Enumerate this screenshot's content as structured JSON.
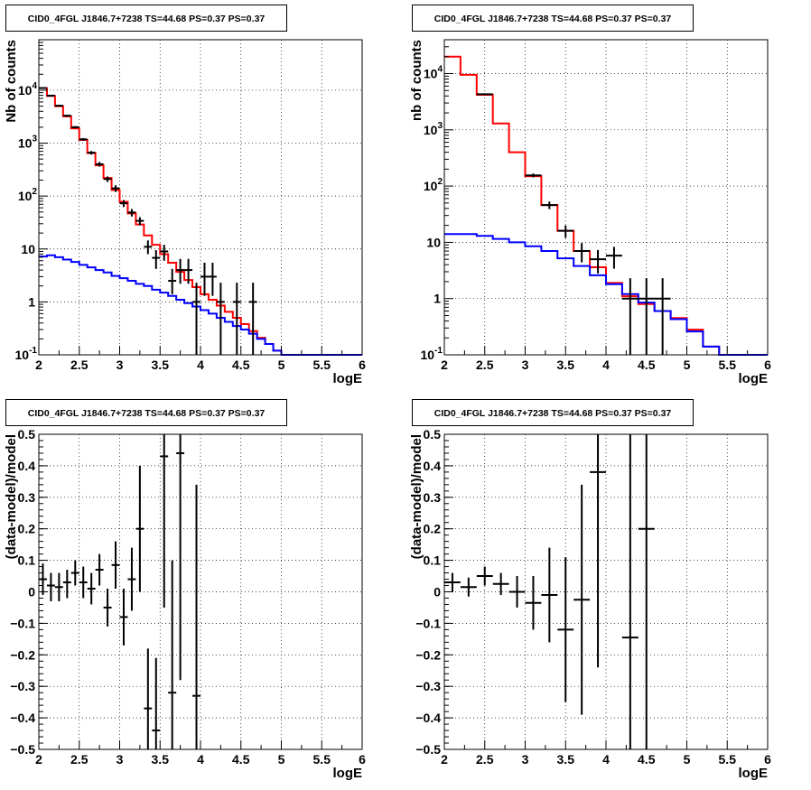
{
  "chart_data": [
    {
      "type": "line",
      "title": "CID0_4FGL J1846.7+7238 TS=44.68 PS=0.37 PS=0.37",
      "xlabel": "logE",
      "ylabel": "Nb of counts",
      "xlim": [
        2,
        6
      ],
      "ylim": [
        0.1,
        90000
      ],
      "yscale": "log",
      "grid": true,
      "xticks": [
        "2",
        "2.5",
        "3",
        "3.5",
        "4",
        "4.5",
        "5",
        "5.5",
        "6"
      ],
      "yticks": [
        {
          "v": 0.1,
          "base": "10",
          "exp": "-1"
        },
        {
          "v": 1,
          "label": "1"
        },
        {
          "v": 10,
          "label": "10"
        },
        {
          "v": 100,
          "base": "10",
          "exp": "2"
        },
        {
          "v": 1000,
          "base": "10",
          "exp": "3"
        },
        {
          "v": 10000,
          "base": "10",
          "exp": "4"
        }
      ],
      "bin_edges": [
        2.0,
        2.1,
        2.2,
        2.3,
        2.4,
        2.5,
        2.6,
        2.7,
        2.8,
        2.9,
        3.0,
        3.1,
        3.2,
        3.3,
        3.4,
        3.5,
        3.6,
        3.7,
        3.8,
        3.9,
        4.0,
        4.1,
        4.2,
        4.3,
        4.4,
        4.5,
        4.6,
        4.7,
        4.8,
        4.9,
        5.0,
        5.1,
        5.2,
        5.3,
        5.4,
        5.5,
        5.6,
        5.7,
        5.8,
        5.9,
        6.0
      ],
      "series": [
        {
          "color": "#ff0000",
          "values": [
            11000,
            7800,
            5000,
            3200,
            1900,
            1150,
            650,
            380,
            220,
            130,
            78,
            47,
            29,
            18,
            12,
            8,
            5.5,
            3.7,
            2.6,
            1.9,
            1.4,
            1.1,
            0.85,
            0.65,
            0.5,
            0.38,
            0.28,
            0.21,
            0.16,
            0.12,
            0.09,
            0.09,
            0.09,
            0.09,
            0.09,
            0.09,
            0.09,
            0.09,
            0.09,
            0.09
          ]
        },
        {
          "color": "#0000ff",
          "values": [
            7.2,
            7.6,
            7.0,
            6.3,
            5.7,
            5.0,
            4.5,
            4.0,
            3.6,
            3.1,
            2.8,
            2.5,
            2.2,
            2.0,
            1.7,
            1.5,
            1.3,
            1.1,
            0.95,
            0.82,
            0.7,
            0.6,
            0.5,
            0.42,
            0.35,
            0.3,
            0.25,
            0.2,
            0.16,
            0.12,
            0.09,
            0.09,
            0.09,
            0.09,
            0.09,
            0.09,
            0.09,
            0.09,
            0.09,
            0.09
          ]
        }
      ],
      "points": [
        {
          "x": 2.05,
          "y": 11000,
          "ylo": 10700,
          "yhi": 11300,
          "xerr": 0.05
        },
        {
          "x": 2.15,
          "y": 7900,
          "ylo": 7650,
          "yhi": 8150,
          "xerr": 0.05
        },
        {
          "x": 2.25,
          "y": 5100,
          "ylo": 4900,
          "yhi": 5300,
          "xerr": 0.05
        },
        {
          "x": 2.35,
          "y": 3300,
          "ylo": 3150,
          "yhi": 3450,
          "xerr": 0.05
        },
        {
          "x": 2.45,
          "y": 2000,
          "ylo": 1900,
          "yhi": 2100,
          "xerr": 0.05
        },
        {
          "x": 2.55,
          "y": 1180,
          "ylo": 1110,
          "yhi": 1250,
          "xerr": 0.05
        },
        {
          "x": 2.65,
          "y": 660,
          "ylo": 610,
          "yhi": 710,
          "xerr": 0.05
        },
        {
          "x": 2.75,
          "y": 400,
          "ylo": 360,
          "yhi": 440,
          "xerr": 0.05
        },
        {
          "x": 2.85,
          "y": 210,
          "ylo": 185,
          "yhi": 235,
          "xerr": 0.05
        },
        {
          "x": 2.95,
          "y": 140,
          "ylo": 120,
          "yhi": 160,
          "xerr": 0.05
        },
        {
          "x": 3.05,
          "y": 73,
          "ylo": 62,
          "yhi": 84,
          "xerr": 0.05
        },
        {
          "x": 3.15,
          "y": 49,
          "ylo": 41,
          "yhi": 57,
          "xerr": 0.05
        },
        {
          "x": 3.25,
          "y": 34,
          "ylo": 28,
          "yhi": 40,
          "xerr": 0.05
        },
        {
          "x": 3.35,
          "y": 11,
          "ylo": 8,
          "yhi": 14.5,
          "xerr": 0.05
        },
        {
          "x": 3.45,
          "y": 6.8,
          "ylo": 4.2,
          "yhi": 9.5,
          "xerr": 0.05
        },
        {
          "x": 3.55,
          "y": 9,
          "ylo": 6,
          "yhi": 12,
          "xerr": 0.05
        },
        {
          "x": 3.65,
          "y": 2.5,
          "ylo": 1.4,
          "yhi": 4.2,
          "xerr": 0.05
        },
        {
          "x": 3.75,
          "y": 4,
          "ylo": 2.2,
          "yhi": 6.5,
          "xerr": 0.05
        },
        {
          "x": 3.85,
          "y": 4,
          "ylo": 2.2,
          "yhi": 6.5,
          "xerr": 0.05
        },
        {
          "x": 3.95,
          "y": 1,
          "ylo": 0.1,
          "yhi": 2.3,
          "xerr": 0.05
        },
        {
          "x": 4.05,
          "y": 3,
          "ylo": 1.3,
          "yhi": 5.5,
          "xerr": 0.05
        },
        {
          "x": 4.15,
          "y": 3,
          "ylo": 1.3,
          "yhi": 5.5,
          "xerr": 0.05
        },
        {
          "x": 4.25,
          "y": 1,
          "ylo": 0.1,
          "yhi": 2.3,
          "xerr": 0.05
        },
        {
          "x": 4.45,
          "y": 1,
          "ylo": 0.1,
          "yhi": 2.3,
          "xerr": 0.05
        },
        {
          "x": 4.65,
          "y": 1,
          "ylo": 0.1,
          "yhi": 2.3,
          "xerr": 0.05
        }
      ]
    },
    {
      "type": "line",
      "title": "CID0_4FGL J1846.7+7238 TS=44.68 PS=0.37 PS=0.37",
      "xlabel": "logE",
      "ylabel": "nb of counts",
      "xlim": [
        2,
        6
      ],
      "ylim": [
        0.1,
        40000
      ],
      "yscale": "log",
      "grid": true,
      "xticks": [
        "2",
        "2.5",
        "3",
        "3.5",
        "4",
        "4.5",
        "5",
        "5.5",
        "6"
      ],
      "yticks": [
        {
          "v": 0.1,
          "base": "10",
          "exp": "-1"
        },
        {
          "v": 1,
          "label": "1"
        },
        {
          "v": 10,
          "label": "10"
        },
        {
          "v": 100,
          "base": "10",
          "exp": "2"
        },
        {
          "v": 1000,
          "base": "10",
          "exp": "3"
        },
        {
          "v": 10000,
          "base": "10",
          "exp": "4"
        }
      ],
      "bin_edges": [
        2.0,
        2.2,
        2.4,
        2.6,
        2.8,
        3.0,
        3.2,
        3.4,
        3.6,
        3.8,
        4.0,
        4.2,
        4.4,
        4.6,
        4.8,
        5.0,
        5.2,
        5.4,
        5.6,
        5.8,
        6.0
      ],
      "series": [
        {
          "color": "#ff0000",
          "values": [
            20000,
            9500,
            4200,
            1300,
            400,
            150,
            46,
            16,
            7,
            3.6,
            1.9,
            1.1,
            0.8,
            0.6,
            0.45,
            0.28,
            0.14,
            0.09,
            0.09,
            0.09
          ]
        },
        {
          "color": "#0000ff",
          "values": [
            14,
            14,
            13,
            11.5,
            10,
            8.5,
            7,
            5.2,
            3.8,
            2.6,
            1.8,
            1.2,
            0.85,
            0.6,
            0.43,
            0.26,
            0.14,
            0.09,
            0.09,
            0.09
          ]
        }
      ],
      "points": [
        {
          "x": 2.5,
          "y": 4300,
          "ylo": 4150,
          "yhi": 4450,
          "xerr": 0.1
        },
        {
          "x": 3.1,
          "y": 155,
          "ylo": 143,
          "yhi": 167,
          "xerr": 0.1
        },
        {
          "x": 3.3,
          "y": 46,
          "ylo": 39,
          "yhi": 53,
          "xerr": 0.1
        },
        {
          "x": 3.5,
          "y": 16,
          "ylo": 12,
          "yhi": 20,
          "xerr": 0.1
        },
        {
          "x": 3.7,
          "y": 7,
          "ylo": 4.4,
          "yhi": 9.7,
          "xerr": 0.1
        },
        {
          "x": 3.9,
          "y": 5,
          "ylo": 2.8,
          "yhi": 7.3,
          "xerr": 0.1
        },
        {
          "x": 4.1,
          "y": 5.8,
          "ylo": 3.4,
          "yhi": 8.3,
          "xerr": 0.1
        },
        {
          "x": 4.3,
          "y": 1,
          "ylo": 0.1,
          "yhi": 2.3,
          "xerr": 0.1
        },
        {
          "x": 4.5,
          "y": 1,
          "ylo": 0.1,
          "yhi": 2.3,
          "xerr": 0.1
        },
        {
          "x": 4.7,
          "y": 1,
          "ylo": 0.1,
          "yhi": 2.3,
          "xerr": 0.1
        }
      ]
    },
    {
      "type": "scatter",
      "title": "CID0_4FGL J1846.7+7238 TS=44.68 PS=0.37 PS=0.37",
      "xlabel": "logE",
      "ylabel": "(data-model)/model",
      "xlim": [
        2,
        6
      ],
      "ylim": [
        -0.5,
        0.5
      ],
      "yscale": "linear",
      "grid": true,
      "xticks": [
        "2",
        "2.5",
        "3",
        "3.5",
        "4",
        "4.5",
        "5",
        "5.5",
        "6"
      ],
      "yticks": [
        {
          "v": -0.5,
          "label": "−0.5"
        },
        {
          "v": -0.4,
          "label": "−0.4"
        },
        {
          "v": -0.3,
          "label": "−0.3"
        },
        {
          "v": -0.2,
          "label": "−0.2"
        },
        {
          "v": -0.1,
          "label": "−0.1"
        },
        {
          "v": 0,
          "label": "0"
        },
        {
          "v": 0.1,
          "label": "0.1"
        },
        {
          "v": 0.2,
          "label": "0.2"
        },
        {
          "v": 0.3,
          "label": "0.3"
        },
        {
          "v": 0.4,
          "label": "0.4"
        },
        {
          "v": 0.5,
          "label": "0.5"
        }
      ],
      "points": [
        {
          "x": 2.05,
          "y": 0.04,
          "ylo": -0.01,
          "yhi": 0.09,
          "xerr": 0.05
        },
        {
          "x": 2.15,
          "y": 0.02,
          "ylo": -0.03,
          "yhi": 0.06,
          "xerr": 0.05
        },
        {
          "x": 2.25,
          "y": 0.015,
          "ylo": -0.03,
          "yhi": 0.06,
          "xerr": 0.05
        },
        {
          "x": 2.35,
          "y": 0.03,
          "ylo": -0.02,
          "yhi": 0.07,
          "xerr": 0.05
        },
        {
          "x": 2.45,
          "y": 0.06,
          "ylo": 0.02,
          "yhi": 0.1,
          "xerr": 0.05
        },
        {
          "x": 2.55,
          "y": 0.03,
          "ylo": -0.02,
          "yhi": 0.08,
          "xerr": 0.05
        },
        {
          "x": 2.65,
          "y": 0.01,
          "ylo": -0.04,
          "yhi": 0.06,
          "xerr": 0.05
        },
        {
          "x": 2.75,
          "y": 0.07,
          "ylo": 0.02,
          "yhi": 0.12,
          "xerr": 0.05
        },
        {
          "x": 2.85,
          "y": -0.05,
          "ylo": -0.11,
          "yhi": 0.01,
          "xerr": 0.05
        },
        {
          "x": 2.95,
          "y": 0.085,
          "ylo": 0.01,
          "yhi": 0.16,
          "xerr": 0.05
        },
        {
          "x": 3.05,
          "y": -0.08,
          "ylo": -0.17,
          "yhi": 0.01,
          "xerr": 0.05
        },
        {
          "x": 3.15,
          "y": 0.04,
          "ylo": -0.06,
          "yhi": 0.14,
          "xerr": 0.05
        },
        {
          "x": 3.25,
          "y": 0.2,
          "ylo": 0.0,
          "yhi": 0.4,
          "xerr": 0.05
        },
        {
          "x": 3.35,
          "y": -0.37,
          "ylo": -0.5,
          "yhi": -0.18,
          "xerr": 0.05
        },
        {
          "x": 3.45,
          "y": -0.44,
          "ylo": -0.5,
          "yhi": -0.21,
          "xerr": 0.05
        },
        {
          "x": 3.55,
          "y": 0.43,
          "ylo": -0.05,
          "yhi": 0.5,
          "xerr": 0.05
        },
        {
          "x": 3.65,
          "y": -0.32,
          "ylo": -0.5,
          "yhi": 0.1,
          "xerr": 0.05
        },
        {
          "x": 3.75,
          "y": 0.44,
          "ylo": -0.28,
          "yhi": 0.5,
          "xerr": 0.05
        },
        {
          "x": 3.95,
          "y": -0.33,
          "ylo": -0.5,
          "yhi": 0.34,
          "xerr": 0.05
        }
      ]
    },
    {
      "type": "scatter",
      "title": "CID0_4FGL J1846.7+7238 TS=44.68 PS=0.37 PS=0.37",
      "xlabel": "logE",
      "ylabel": "(data-model)/model",
      "xlim": [
        2,
        6
      ],
      "ylim": [
        -0.5,
        0.5
      ],
      "yscale": "linear",
      "grid": true,
      "xticks": [
        "2",
        "2.5",
        "3",
        "3.5",
        "4",
        "4.5",
        "5",
        "5.5",
        "6"
      ],
      "yticks": [
        {
          "v": -0.5,
          "label": "−0.5"
        },
        {
          "v": -0.4,
          "label": "−0.4"
        },
        {
          "v": -0.3,
          "label": "−0.3"
        },
        {
          "v": -0.2,
          "label": "−0.2"
        },
        {
          "v": -0.1,
          "label": "−0.1"
        },
        {
          "v": 0,
          "label": "0"
        },
        {
          "v": 0.1,
          "label": "0.1"
        },
        {
          "v": 0.2,
          "label": "0.2"
        },
        {
          "v": 0.3,
          "label": "0.3"
        },
        {
          "v": 0.4,
          "label": "0.4"
        },
        {
          "v": 0.5,
          "label": "0.5"
        }
      ],
      "points": [
        {
          "x": 2.1,
          "y": 0.03,
          "ylo": 0.0,
          "yhi": 0.06,
          "xerr": 0.1
        },
        {
          "x": 2.3,
          "y": 0.015,
          "ylo": -0.015,
          "yhi": 0.045,
          "xerr": 0.1
        },
        {
          "x": 2.5,
          "y": 0.05,
          "ylo": 0.02,
          "yhi": 0.08,
          "xerr": 0.1
        },
        {
          "x": 2.7,
          "y": 0.025,
          "ylo": -0.01,
          "yhi": 0.06,
          "xerr": 0.1
        },
        {
          "x": 2.9,
          "y": 0.0,
          "ylo": -0.05,
          "yhi": 0.05,
          "xerr": 0.1
        },
        {
          "x": 3.1,
          "y": -0.035,
          "ylo": -0.12,
          "yhi": 0.05,
          "xerr": 0.1
        },
        {
          "x": 3.3,
          "y": -0.01,
          "ylo": -0.16,
          "yhi": 0.14,
          "xerr": 0.1
        },
        {
          "x": 3.5,
          "y": -0.12,
          "ylo": -0.35,
          "yhi": 0.11,
          "xerr": 0.1
        },
        {
          "x": 3.7,
          "y": -0.025,
          "ylo": -0.39,
          "yhi": 0.34,
          "xerr": 0.1
        },
        {
          "x": 3.9,
          "y": 0.38,
          "ylo": -0.24,
          "yhi": 0.5,
          "xerr": 0.1
        },
        {
          "x": 4.3,
          "y": -0.145,
          "ylo": -0.5,
          "yhi": 0.5,
          "xerr": 0.1
        },
        {
          "x": 4.5,
          "y": 0.2,
          "ylo": -0.5,
          "yhi": 0.5,
          "xerr": 0.1
        }
      ]
    }
  ]
}
